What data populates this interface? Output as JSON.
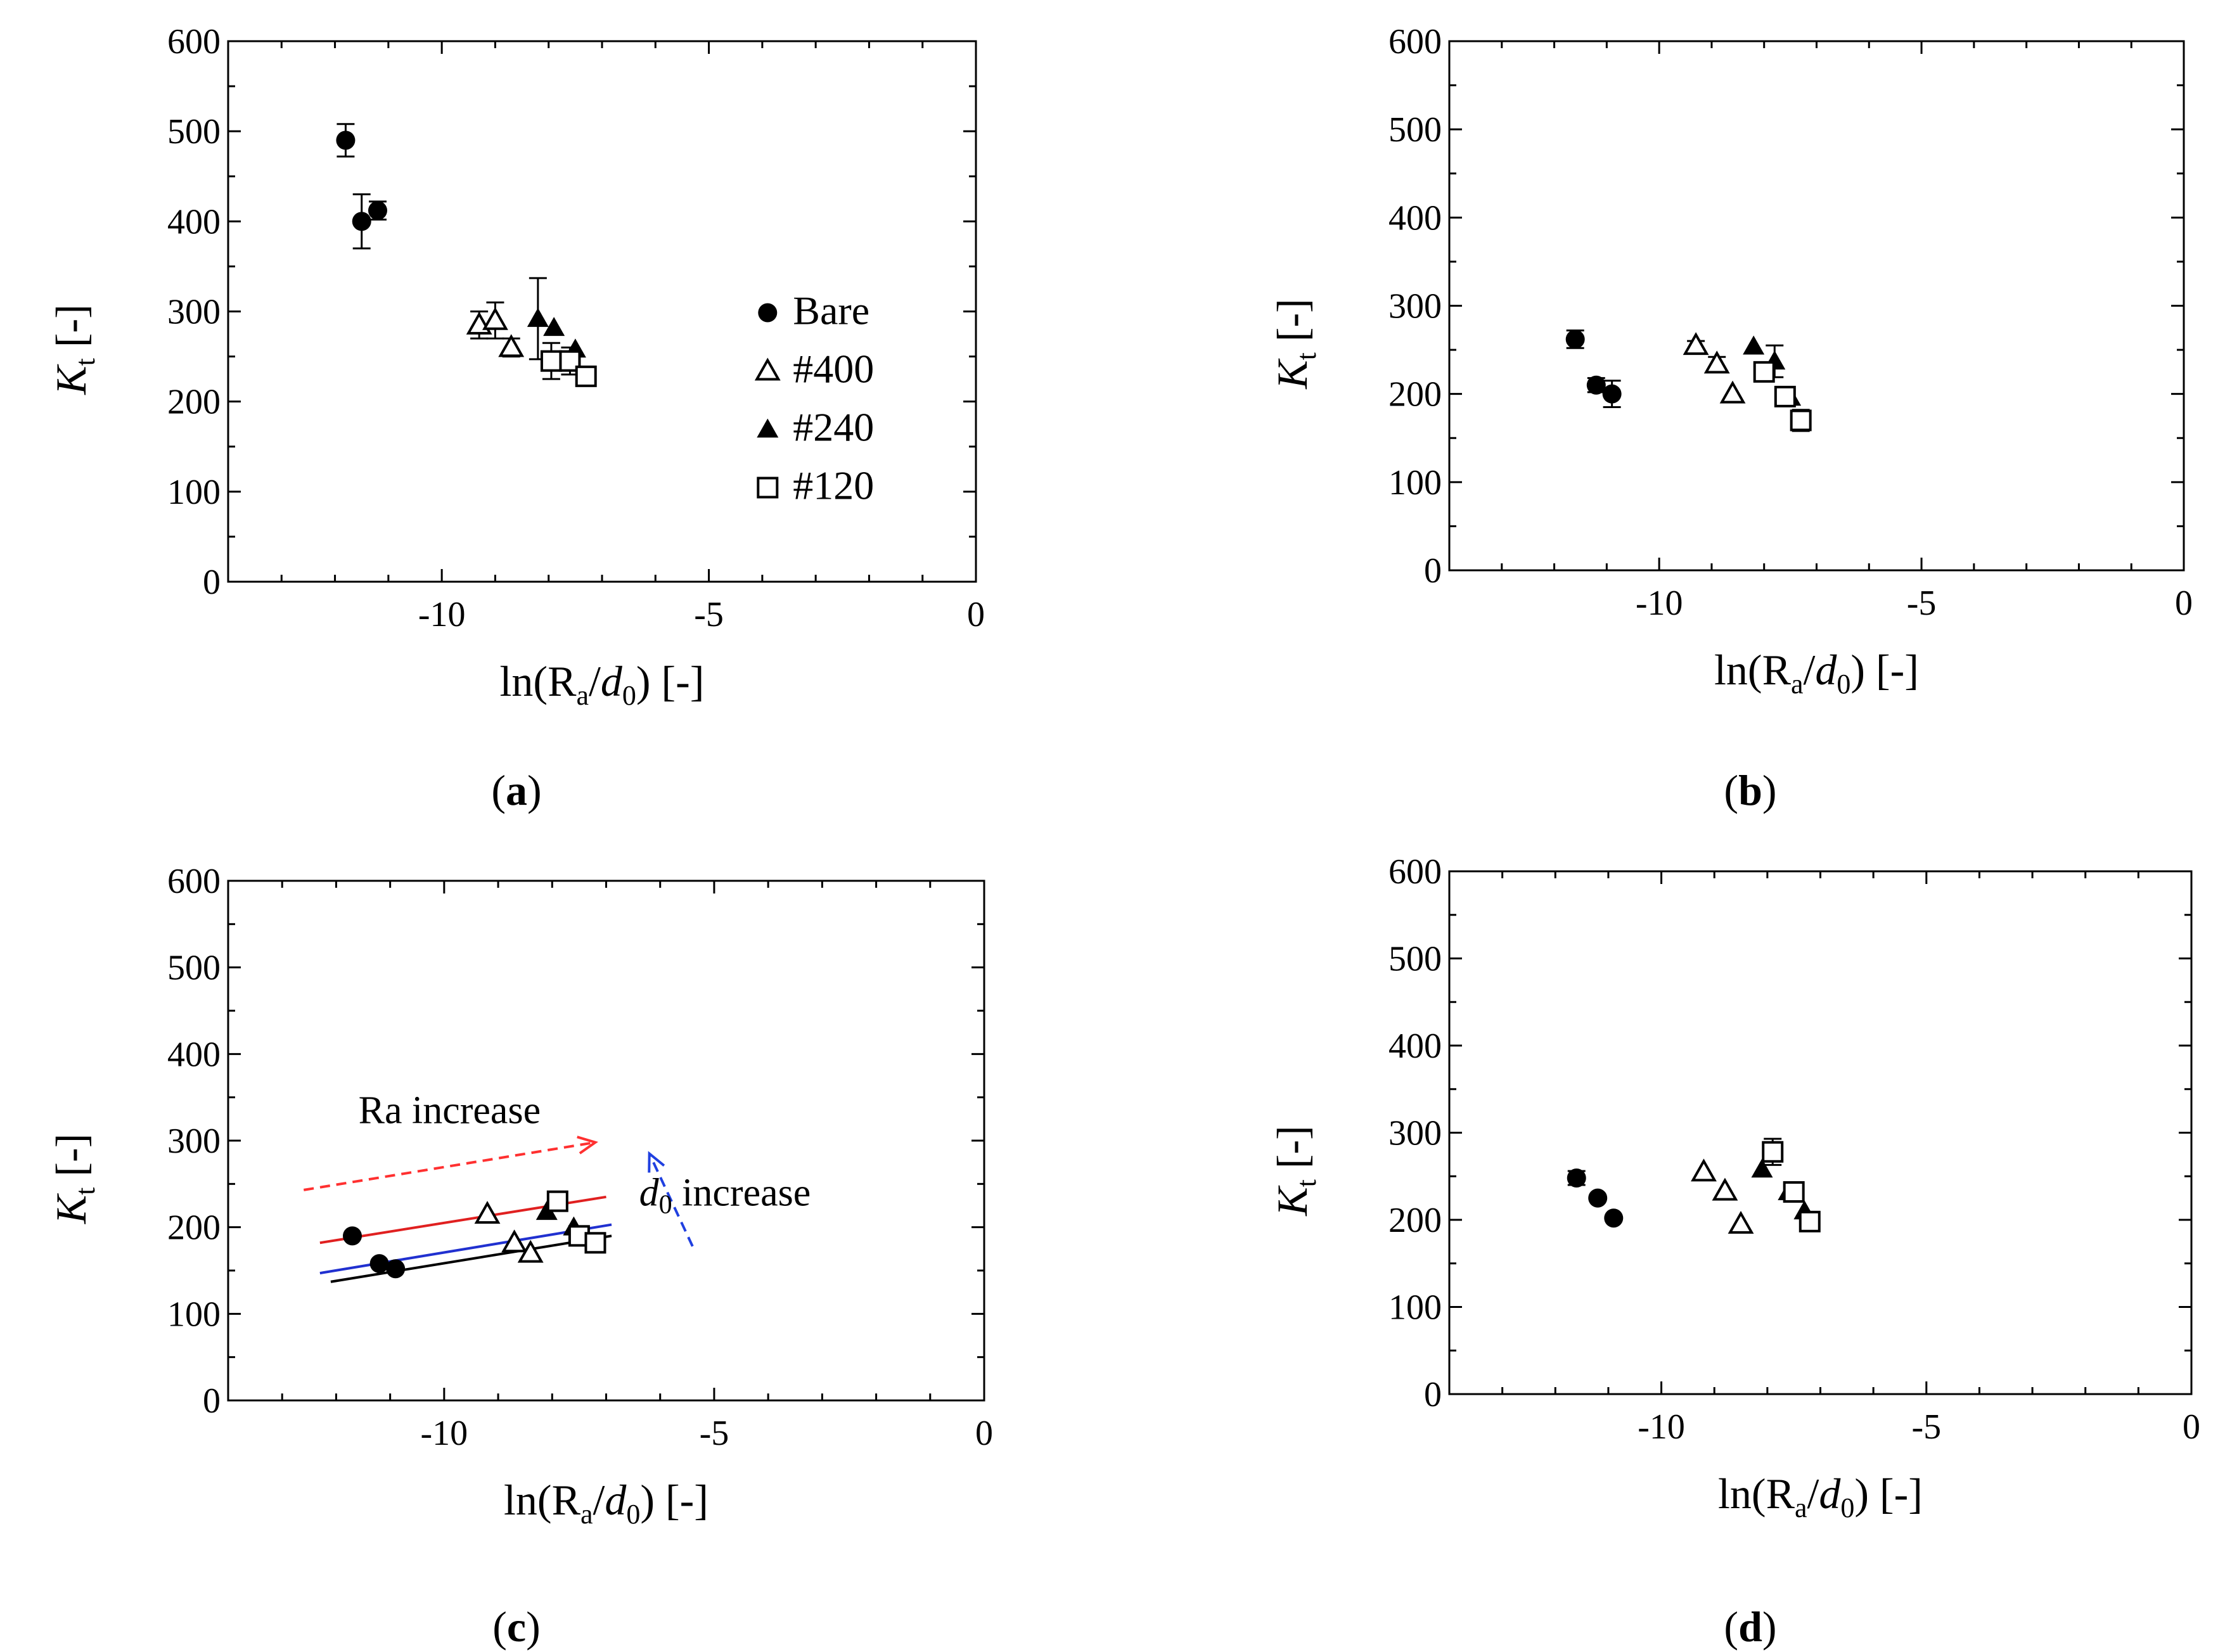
{
  "figure": {
    "panel_labels": [
      {
        "open": "(",
        "letter": "a",
        "close": ")"
      },
      {
        "open": "(",
        "letter": "b",
        "close": ")"
      },
      {
        "open": "(",
        "letter": "c",
        "close": ")"
      },
      {
        "open": "(",
        "letter": "d",
        "close": ")"
      }
    ]
  },
  "colors": {
    "axis": "#000000",
    "red_line": "#e02020",
    "blue_line": "#2030d0",
    "black_line": "#000000",
    "red_arrow": "#ff3030",
    "blue_arrow": "#2040e0"
  },
  "chart_data": [
    {
      "type": "scatter",
      "panel": "a",
      "xlabel": {
        "prefix": "ln(R",
        "sub1": "a",
        "mid": "/",
        "ital": "d",
        "sub2": "0",
        "suffix": ") [-]"
      },
      "ylabel": {
        "ital": "K",
        "sub": "t",
        "suffix": " [-]"
      },
      "xlim": [
        -14,
        0
      ],
      "ylim": [
        0,
        600
      ],
      "xticks": [
        -10,
        -5,
        0
      ],
      "yticks": [
        0,
        100,
        200,
        300,
        400,
        500,
        600
      ],
      "legend": {
        "placement": "right-middle",
        "entries": [
          {
            "label": "Bare",
            "marker": "circle-filled"
          },
          {
            "label": "#400",
            "marker": "triangle-open"
          },
          {
            "label": "#240",
            "marker": "triangle-filled"
          },
          {
            "label": "#120",
            "marker": "square-open"
          }
        ]
      },
      "series": [
        {
          "name": "Bare",
          "marker": "circle-filled",
          "points": [
            {
              "x": -11.8,
              "y": 490,
              "err": 18
            },
            {
              "x": -11.5,
              "y": 400,
              "err": 30
            },
            {
              "x": -11.2,
              "y": 412,
              "err": 10
            }
          ]
        },
        {
          "name": "#400",
          "marker": "triangle-open",
          "points": [
            {
              "x": -9.3,
              "y": 285,
              "err": 15
            },
            {
              "x": -9.0,
              "y": 290,
              "err": 20
            },
            {
              "x": -8.7,
              "y": 260,
              "err": 10
            }
          ]
        },
        {
          "name": "#240",
          "marker": "triangle-filled",
          "points": [
            {
              "x": -8.2,
              "y": 292,
              "err": 45
            },
            {
              "x": -7.9,
              "y": 282,
              "err": 0
            },
            {
              "x": -7.5,
              "y": 258,
              "err": 0
            }
          ]
        },
        {
          "name": "#120",
          "marker": "square-open",
          "points": [
            {
              "x": -7.95,
              "y": 245,
              "err": 20
            },
            {
              "x": -7.6,
              "y": 245,
              "err": 15
            },
            {
              "x": -7.3,
              "y": 228,
              "err": 0
            }
          ]
        }
      ]
    },
    {
      "type": "scatter",
      "panel": "b",
      "xlabel": {
        "prefix": "ln(R",
        "sub1": "a",
        "mid": "/",
        "ital": "d",
        "sub2": "0",
        "suffix": ") [-]"
      },
      "ylabel": {
        "ital": "K",
        "sub": "t",
        "suffix": " [-]"
      },
      "xlim": [
        -14,
        0
      ],
      "ylim": [
        0,
        600
      ],
      "xticks": [
        -10,
        -5,
        0
      ],
      "yticks": [
        0,
        100,
        200,
        300,
        400,
        500,
        600
      ],
      "series": [
        {
          "name": "Bare",
          "marker": "circle-filled",
          "points": [
            {
              "x": -11.6,
              "y": 262,
              "err": 10
            },
            {
              "x": -11.2,
              "y": 210,
              "err": 8
            },
            {
              "x": -10.9,
              "y": 200,
              "err": 15
            }
          ]
        },
        {
          "name": "#400",
          "marker": "triangle-open",
          "points": [
            {
              "x": -9.3,
              "y": 255,
              "err": 5
            },
            {
              "x": -8.9,
              "y": 234,
              "err": 8
            },
            {
              "x": -8.6,
              "y": 200,
              "err": 0
            }
          ]
        },
        {
          "name": "#240",
          "marker": "triangle-filled",
          "points": [
            {
              "x": -8.2,
              "y": 254,
              "err": 0
            },
            {
              "x": -7.8,
              "y": 237,
              "err": 18
            },
            {
              "x": -7.5,
              "y": 196,
              "err": 0
            }
          ]
        },
        {
          "name": "#120",
          "marker": "square-open",
          "points": [
            {
              "x": -8.0,
              "y": 225,
              "err": 10
            },
            {
              "x": -7.6,
              "y": 197,
              "err": 10
            },
            {
              "x": -7.3,
              "y": 170,
              "err": 12
            }
          ]
        }
      ]
    },
    {
      "type": "scatter",
      "panel": "c",
      "xlabel": {
        "prefix": "ln(R",
        "sub1": "a",
        "mid": "/",
        "ital": "d",
        "sub2": "0",
        "suffix": ") [-]"
      },
      "ylabel": {
        "ital": "K",
        "sub": "t",
        "suffix": " [-]"
      },
      "xlim": [
        -14,
        0
      ],
      "ylim": [
        0,
        600
      ],
      "xticks": [
        -10,
        -5,
        0
      ],
      "yticks": [
        0,
        100,
        200,
        300,
        400,
        500,
        600
      ],
      "annotations": [
        {
          "text": "Ra increase",
          "color": "red_arrow"
        },
        {
          "ital": "d",
          "sub": "0",
          "text": " increase",
          "color": "blue_arrow"
        }
      ],
      "arrows": [
        {
          "name": "ra-increase-arrow",
          "from": [
            -12.6,
            243
          ],
          "to": [
            -7.2,
            298
          ],
          "color": "red_arrow"
        },
        {
          "name": "d0-increase-arrow",
          "from": [
            -5.4,
            178
          ],
          "to": [
            -6.2,
            285
          ],
          "color": "blue_arrow"
        }
      ],
      "fit_lines": [
        {
          "name": "red-fit-line",
          "color": "red_line",
          "x": [
            -12.3,
            -7.0
          ],
          "y": [
            182,
            235
          ]
        },
        {
          "name": "blue-fit-line",
          "color": "blue_line",
          "x": [
            -12.3,
            -6.9
          ],
          "y": [
            147,
            203
          ]
        },
        {
          "name": "black-fit-line",
          "color": "black_line",
          "x": [
            -12.1,
            -6.9
          ],
          "y": [
            137,
            190
          ]
        }
      ],
      "series": [
        {
          "name": "Bare",
          "marker": "circle-filled",
          "points": [
            {
              "x": -11.7,
              "y": 190,
              "err": 0
            },
            {
              "x": -11.2,
              "y": 158,
              "err": 0
            },
            {
              "x": -10.9,
              "y": 152,
              "err": 0
            }
          ]
        },
        {
          "name": "#400",
          "marker": "triangle-open",
          "points": [
            {
              "x": -9.2,
              "y": 215,
              "err": 0
            },
            {
              "x": -8.7,
              "y": 182,
              "err": 0
            },
            {
              "x": -8.4,
              "y": 170,
              "err": 0
            }
          ]
        },
        {
          "name": "#240",
          "marker": "triangle-filled",
          "points": [
            {
              "x": -8.1,
              "y": 218,
              "err": 0
            },
            {
              "x": -7.6,
              "y": 200,
              "err": 0
            },
            {
              "x": -7.4,
              "y": 190,
              "err": 0
            }
          ]
        },
        {
          "name": "#120",
          "marker": "square-open",
          "points": [
            {
              "x": -7.9,
              "y": 230,
              "err": 0
            },
            {
              "x": -7.5,
              "y": 190,
              "err": 0
            },
            {
              "x": -7.2,
              "y": 182,
              "err": 0
            }
          ]
        }
      ]
    },
    {
      "type": "scatter",
      "panel": "d",
      "xlabel": {
        "prefix": "ln(R",
        "sub1": "a",
        "mid": "/",
        "ital": "d",
        "sub2": "0",
        "suffix": ") [-]"
      },
      "ylabel": {
        "ital": "K",
        "sub": "t",
        "suffix": " [-]"
      },
      "xlim": [
        -14,
        0
      ],
      "ylim": [
        0,
        600
      ],
      "xticks": [
        -10,
        -5,
        0
      ],
      "yticks": [
        0,
        100,
        200,
        300,
        400,
        500,
        600
      ],
      "series": [
        {
          "name": "Bare",
          "marker": "circle-filled",
          "points": [
            {
              "x": -11.6,
              "y": 248,
              "err": 8
            },
            {
              "x": -11.2,
              "y": 225,
              "err": 0
            },
            {
              "x": -10.9,
              "y": 202,
              "err": 0
            }
          ]
        },
        {
          "name": "#400",
          "marker": "triangle-open",
          "points": [
            {
              "x": -9.2,
              "y": 255,
              "err": 0
            },
            {
              "x": -8.8,
              "y": 233,
              "err": 0
            },
            {
              "x": -8.5,
              "y": 195,
              "err": 0
            }
          ]
        },
        {
          "name": "#240",
          "marker": "triangle-filled",
          "points": [
            {
              "x": -8.1,
              "y": 258,
              "err": 0
            },
            {
              "x": -7.6,
              "y": 232,
              "err": 0
            },
            {
              "x": -7.3,
              "y": 210,
              "err": 0
            }
          ]
        },
        {
          "name": "#120",
          "marker": "square-open",
          "points": [
            {
              "x": -7.9,
              "y": 278,
              "err": 15
            },
            {
              "x": -7.5,
              "y": 232,
              "err": 0
            },
            {
              "x": -7.2,
              "y": 198,
              "err": 0
            }
          ]
        }
      ]
    }
  ]
}
